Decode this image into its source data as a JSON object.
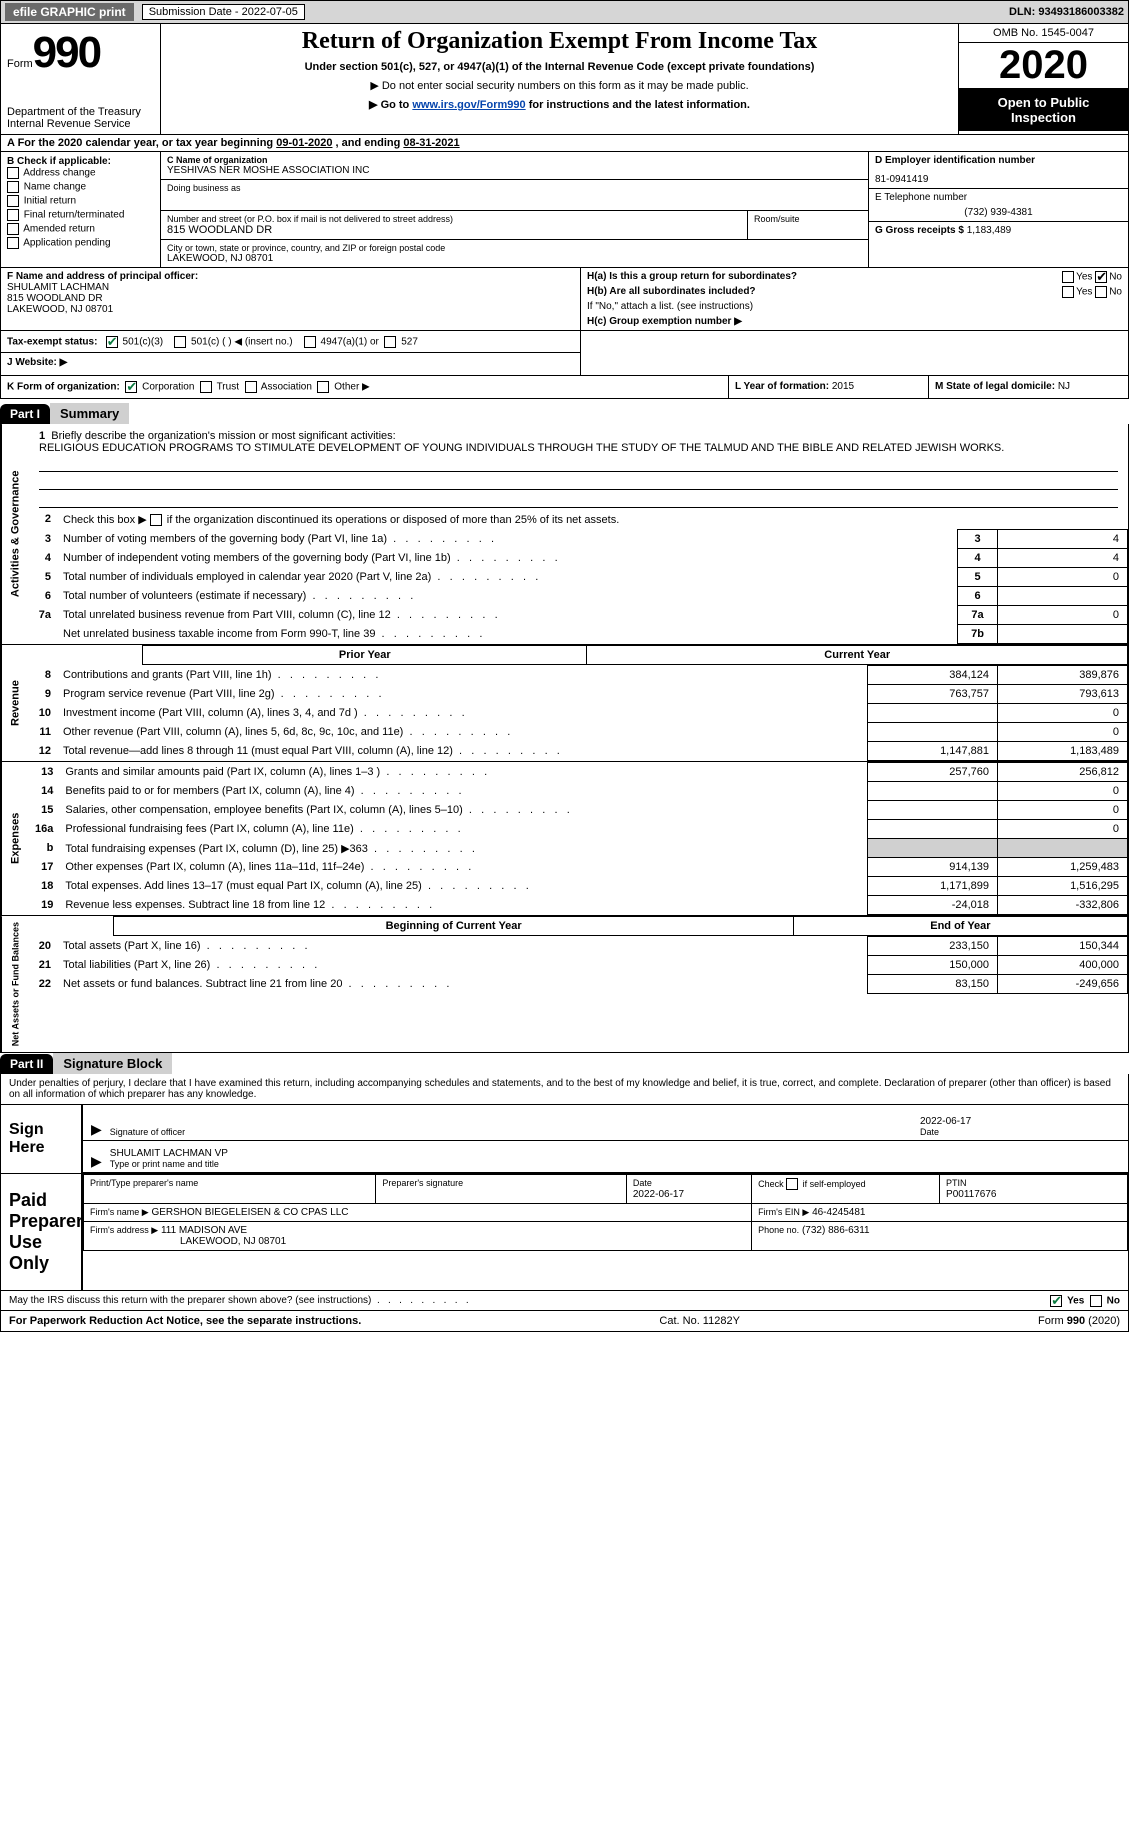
{
  "colors": {
    "topbar_bg": "#d6d6d6",
    "btn_bg": "#6a6a6a",
    "link": "#0645ad",
    "black": "#000000",
    "gray_cell": "#d0d0d0",
    "check_green": "#0a7a3f"
  },
  "topbar": {
    "efile": "efile GRAPHIC print",
    "sub_label": "Submission Date - 2022-07-05",
    "dln": "DLN: 93493186003382"
  },
  "header": {
    "form_word": "Form",
    "form_num": "990",
    "dept1": "Department of the Treasury",
    "dept2": "Internal Revenue Service",
    "title": "Return of Organization Exempt From Income Tax",
    "sub1": "Under section 501(c), 527, or 4947(a)(1) of the Internal Revenue Code (except private foundations)",
    "sub2": "▶ Do not enter social security numbers on this form as it may be made public.",
    "sub3_pre": "▶ Go to ",
    "sub3_link": "www.irs.gov/Form990",
    "sub3_post": " for instructions and the latest information.",
    "omb": "OMB No. 1545-0047",
    "year": "2020",
    "open1": "Open to Public",
    "open2": "Inspection"
  },
  "lineA": {
    "prefix": "A For the 2020 calendar year, or tax year beginning ",
    "begin": "09-01-2020",
    "mid": "  , and ending ",
    "end": "08-31-2021"
  },
  "colB": {
    "head": "B Check if applicable:",
    "opts": [
      "Address change",
      "Name change",
      "Initial return",
      "Final return/terminated",
      "Amended return",
      "Application pending"
    ]
  },
  "colC": {
    "name_lbl": "C Name of organization",
    "name": "YESHIVAS NER MOSHE ASSOCIATION INC",
    "dba_lbl": "Doing business as",
    "addr_lbl": "Number and street (or P.O. box if mail is not delivered to street address)",
    "addr": "815 WOODLAND DR",
    "room_lbl": "Room/suite",
    "city_lbl": "City or town, state or province, country, and ZIP or foreign postal code",
    "city": "LAKEWOOD, NJ  08701"
  },
  "colDE": {
    "d_lbl": "D Employer identification number",
    "d_val": "81-0941419",
    "e_lbl": "E Telephone number",
    "e_val": "(732) 939-4381",
    "g_lbl": "G Gross receipts $",
    "g_val": "1,183,489"
  },
  "rowF": {
    "lbl": "F Name and address of principal officer:",
    "name": "SHULAMIT LACHMAN",
    "addr1": "815 WOODLAND DR",
    "addr2": "LAKEWOOD, NJ  08701"
  },
  "rowH": {
    "ha": "H(a)  Is this a group return for subordinates?",
    "ha_yes": "Yes",
    "ha_no": "No",
    "hb": "H(b)  Are all subordinates included?",
    "hb_yes": "Yes",
    "hb_no": "No",
    "hb_note": "If \"No,\" attach a list. (see instructions)",
    "hc": "H(c)  Group exemption number ▶"
  },
  "rowI": {
    "lbl": "Tax-exempt status:",
    "o1": "501(c)(3)",
    "o2": "501(c) (  ) ◀ (insert no.)",
    "o3": "4947(a)(1) or",
    "o4": "527"
  },
  "rowJ": {
    "lbl": "J   Website: ▶"
  },
  "rowK": {
    "lbl": "K Form of organization:",
    "o1": "Corporation",
    "o2": "Trust",
    "o3": "Association",
    "o4": "Other ▶",
    "l_lbl": "L Year of formation:",
    "l_val": "2015",
    "m_lbl": "M State of legal domicile:",
    "m_val": "NJ"
  },
  "part1": {
    "tag": "Part I",
    "title": "Summary",
    "side_gov": "Activities & Governance",
    "side_rev": "Revenue",
    "side_exp": "Expenses",
    "side_net": "Net Assets or Fund Balances",
    "q1_lbl": "Briefly describe the organization's mission or most significant activities:",
    "q1_val": "RELIGIOUS EDUCATION PROGRAMS TO STIMULATE DEVELOPMENT OF YOUNG INDIVIDUALS THROUGH THE STUDY OF THE TALMUD AND THE BIBLE AND RELATED JEWISH WORKS.",
    "q2": "Check this box ▶       if the organization discontinued its operations or disposed of more than 25% of its net assets.",
    "rows_simple": [
      {
        "n": "3",
        "t": "Number of voting members of the governing body (Part VI, line 1a)",
        "box": "3",
        "v": "4"
      },
      {
        "n": "4",
        "t": "Number of independent voting members of the governing body (Part VI, line 1b)",
        "box": "4",
        "v": "4"
      },
      {
        "n": "5",
        "t": "Total number of individuals employed in calendar year 2020 (Part V, line 2a)",
        "box": "5",
        "v": "0"
      },
      {
        "n": "6",
        "t": "Total number of volunteers (estimate if necessary)",
        "box": "6",
        "v": ""
      },
      {
        "n": "7a",
        "t": "Total unrelated business revenue from Part VIII, column (C), line 12",
        "box": "7a",
        "v": "0"
      },
      {
        "n": "",
        "t": "Net unrelated business taxable income from Form 990-T, line 39",
        "box": "7b",
        "v": ""
      }
    ],
    "col_prior": "Prior Year",
    "col_curr": "Current Year",
    "rows_two": [
      {
        "n": "8",
        "t": "Contributions and grants (Part VIII, line 1h)",
        "p": "384,124",
        "c": "389,876"
      },
      {
        "n": "9",
        "t": "Program service revenue (Part VIII, line 2g)",
        "p": "763,757",
        "c": "793,613"
      },
      {
        "n": "10",
        "t": "Investment income (Part VIII, column (A), lines 3, 4, and 7d )",
        "p": "",
        "c": "0"
      },
      {
        "n": "11",
        "t": "Other revenue (Part VIII, column (A), lines 5, 6d, 8c, 9c, 10c, and 11e)",
        "p": "",
        "c": "0"
      },
      {
        "n": "12",
        "t": "Total revenue—add lines 8 through 11 (must equal Part VIII, column (A), line 12)",
        "p": "1,147,881",
        "c": "1,183,489"
      }
    ],
    "rows_exp": [
      {
        "n": "13",
        "t": "Grants and similar amounts paid (Part IX, column (A), lines 1–3 )",
        "p": "257,760",
        "c": "256,812"
      },
      {
        "n": "14",
        "t": "Benefits paid to or for members (Part IX, column (A), line 4)",
        "p": "",
        "c": "0"
      },
      {
        "n": "15",
        "t": "Salaries, other compensation, employee benefits (Part IX, column (A), lines 5–10)",
        "p": "",
        "c": "0"
      },
      {
        "n": "16a",
        "t": "Professional fundraising fees (Part IX, column (A), line 11e)",
        "p": "",
        "c": "0"
      },
      {
        "n": "b",
        "t": "Total fundraising expenses (Part IX, column (D), line 25) ▶363",
        "p": "GRAY",
        "c": "GRAY"
      },
      {
        "n": "17",
        "t": "Other expenses (Part IX, column (A), lines 11a–11d, 11f–24e)",
        "p": "914,139",
        "c": "1,259,483"
      },
      {
        "n": "18",
        "t": "Total expenses. Add lines 13–17 (must equal Part IX, column (A), line 25)",
        "p": "1,171,899",
        "c": "1,516,295"
      },
      {
        "n": "19",
        "t": "Revenue less expenses. Subtract line 18 from line 12",
        "p": "-24,018",
        "c": "-332,806"
      }
    ],
    "col_beg": "Beginning of Current Year",
    "col_end": "End of Year",
    "rows_net": [
      {
        "n": "20",
        "t": "Total assets (Part X, line 16)",
        "p": "233,150",
        "c": "150,344"
      },
      {
        "n": "21",
        "t": "Total liabilities (Part X, line 26)",
        "p": "150,000",
        "c": "400,000"
      },
      {
        "n": "22",
        "t": "Net assets or fund balances. Subtract line 21 from line 20",
        "p": "83,150",
        "c": "-249,656"
      }
    ]
  },
  "part2": {
    "tag": "Part II",
    "title": "Signature Block",
    "decl": "Under penalties of perjury, I declare that I have examined this return, including accompanying schedules and statements, and to the best of my knowledge and belief, it is true, correct, and complete. Declaration of preparer (other than officer) is based on all information of which preparer has any knowledge.",
    "sign_here": "Sign Here",
    "sig_of_officer": "Signature of officer",
    "sig_date": "2022-06-17",
    "date_lbl": "Date",
    "name_title": "SHULAMIT LACHMAN VP",
    "name_title_lbl": "Type or print name and title",
    "paid_lbl": "Paid Preparer Use Only",
    "prep_name_lbl": "Print/Type preparer's name",
    "prep_sig_lbl": "Preparer's signature",
    "prep_date_lbl": "Date",
    "prep_date": "2022-06-17",
    "check_lbl": "Check        if self-employed",
    "ptin_lbl": "PTIN",
    "ptin": "P00117676",
    "firm_name_lbl": "Firm's name      ▶",
    "firm_name": "GERSHON BIEGELEISEN & CO CPAS LLC",
    "firm_ein_lbl": "Firm's EIN ▶",
    "firm_ein": "46-4245481",
    "firm_addr_lbl": "Firm's address ▶",
    "firm_addr1": "111 MADISON AVE",
    "firm_addr2": "LAKEWOOD, NJ  08701",
    "phone_lbl": "Phone no.",
    "phone": "(732) 886-6311",
    "discuss": "May the IRS discuss this return with the preparer shown above? (see instructions)",
    "yes": "Yes",
    "no": "No"
  },
  "footer": {
    "left": "For Paperwork Reduction Act Notice, see the separate instructions.",
    "mid": "Cat. No. 11282Y",
    "right": "Form 990 (2020)"
  }
}
